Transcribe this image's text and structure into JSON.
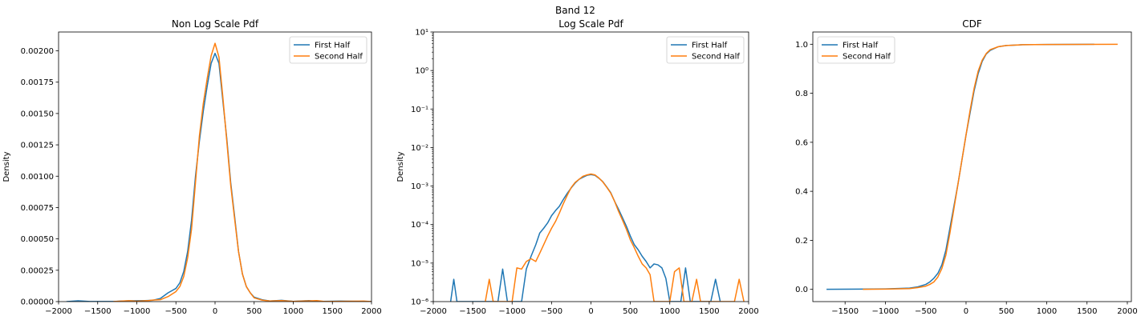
{
  "figure": {
    "suptitle": "Band 12"
  },
  "colors": {
    "first": "#1f77b4",
    "second": "#ff7f0e"
  },
  "chart_data": [
    {
      "type": "line",
      "title": "Non Log Scale Pdf",
      "xlabel": "",
      "ylabel": "Density",
      "xlim": [
        -2000,
        2000
      ],
      "ylim": [
        0,
        0.00215
      ],
      "xticks": [
        -2000,
        -1500,
        -1000,
        -500,
        0,
        500,
        1000,
        1500,
        2000
      ],
      "yticks": [
        0,
        0.00025,
        0.0005,
        0.00075,
        0.001,
        0.00125,
        0.0015,
        0.00175,
        0.002
      ],
      "ytick_labels": [
        "0.00000",
        "0.00025",
        "0.00050",
        "0.00075",
        "0.00100",
        "0.00125",
        "0.00150",
        "0.00175",
        "0.00200"
      ],
      "legend": "top-right",
      "grid": false,
      "series": [
        {
          "name": "First Half",
          "points": [
            [
              -1900,
              0
            ],
            [
              -1750,
              6e-06
            ],
            [
              -1600,
              1e-06
            ],
            [
              -1300,
              1e-06
            ],
            [
              -1100,
              6e-06
            ],
            [
              -900,
              8e-06
            ],
            [
              -800,
              1e-05
            ],
            [
              -700,
              2.5e-05
            ],
            [
              -600,
              7e-05
            ],
            [
              -500,
              0.000105
            ],
            [
              -450,
              0.00015
            ],
            [
              -400,
              0.00024
            ],
            [
              -350,
              0.0004
            ],
            [
              -300,
              0.00065
            ],
            [
              -250,
              0.001
            ],
            [
              -200,
              0.00128
            ],
            [
              -150,
              0.00152
            ],
            [
              -100,
              0.00172
            ],
            [
              -50,
              0.0019
            ],
            [
              0,
              0.00198
            ],
            [
              50,
              0.0019
            ],
            [
              100,
              0.0016
            ],
            [
              150,
              0.0013
            ],
            [
              200,
              0.00095
            ],
            [
              250,
              0.00068
            ],
            [
              300,
              0.0004
            ],
            [
              350,
              0.00022
            ],
            [
              400,
              0.00012
            ],
            [
              450,
              7e-05
            ],
            [
              500,
              3.5e-05
            ],
            [
              600,
              1.5e-05
            ],
            [
              700,
              5e-06
            ],
            [
              850,
              1e-05
            ],
            [
              1000,
              2e-06
            ],
            [
              1200,
              8e-06
            ],
            [
              1300,
              1e-06
            ],
            [
              1600,
              4e-06
            ],
            [
              2000,
              0
            ]
          ]
        },
        {
          "name": "Second Half",
          "points": [
            [
              -1300,
              0
            ],
            [
              -1200,
              4e-06
            ],
            [
              -1100,
              7e-06
            ],
            [
              -1000,
              3e-06
            ],
            [
              -850,
              8e-06
            ],
            [
              -800,
              1.2e-05
            ],
            [
              -700,
              1.5e-05
            ],
            [
              -600,
              4e-05
            ],
            [
              -550,
              6e-05
            ],
            [
              -500,
              8e-05
            ],
            [
              -450,
              0.00012
            ],
            [
              -400,
              0.0002
            ],
            [
              -350,
              0.00035
            ],
            [
              -300,
              0.00058
            ],
            [
              -250,
              0.00095
            ],
            [
              -200,
              0.00132
            ],
            [
              -150,
              0.00158
            ],
            [
              -100,
              0.00178
            ],
            [
              -50,
              0.00196
            ],
            [
              0,
              0.00206
            ],
            [
              50,
              0.00195
            ],
            [
              100,
              0.00163
            ],
            [
              150,
              0.00128
            ],
            [
              200,
              0.00093
            ],
            [
              250,
              0.00066
            ],
            [
              300,
              0.0004
            ],
            [
              350,
              0.00022
            ],
            [
              400,
              0.00012
            ],
            [
              450,
              7e-05
            ],
            [
              500,
              3e-05
            ],
            [
              600,
              1.2e-05
            ],
            [
              700,
              5e-06
            ],
            [
              850,
              8e-06
            ],
            [
              1000,
              2e-06
            ],
            [
              1300,
              8e-06
            ],
            [
              1400,
              1e-06
            ],
            [
              1900,
              4e-06
            ],
            [
              2000,
              0
            ]
          ]
        }
      ]
    },
    {
      "type": "line",
      "title": "Log Scale Pdf",
      "xlabel": "",
      "ylabel": "Density",
      "yscale": "log",
      "xlim": [
        -2000,
        2000
      ],
      "ylim": [
        1e-06,
        10
      ],
      "xticks": [
        -2000,
        -1500,
        -1000,
        -500,
        0,
        500,
        1000,
        1500,
        2000
      ],
      "yticks": [
        1e-06,
        1e-05,
        0.0001,
        0.001,
        0.01,
        0.1,
        1,
        10
      ],
      "ytick_labels": [
        "10⁻⁶",
        "10⁻⁵",
        "10⁻⁴",
        "10⁻³",
        "10⁻²",
        "10⁻¹",
        "10⁰",
        "10¹"
      ],
      "legend": "top-right",
      "grid": false,
      "series": [
        {
          "name": "First Half",
          "points": [
            [
              -1780,
              1e-06
            ],
            [
              -1740,
              3.8e-06
            ],
            [
              -1700,
              1e-06
            ],
            [
              -1180,
              1e-06
            ],
            [
              -1120,
              7e-06
            ],
            [
              -1060,
              1e-06
            ],
            [
              -880,
              1e-06
            ],
            [
              -820,
              7e-06
            ],
            [
              -760,
              1.5e-05
            ],
            [
              -700,
              3e-05
            ],
            [
              -650,
              6e-05
            ],
            [
              -600,
              8e-05
            ],
            [
              -550,
              0.00011
            ],
            [
              -500,
              0.00017
            ],
            [
              -450,
              0.00023
            ],
            [
              -400,
              0.0003
            ],
            [
              -350,
              0.00045
            ],
            [
              -300,
              0.00065
            ],
            [
              -250,
              0.0009
            ],
            [
              -200,
              0.0012
            ],
            [
              -150,
              0.0015
            ],
            [
              -100,
              0.0017
            ],
            [
              -50,
              0.0019
            ],
            [
              0,
              0.00198
            ],
            [
              50,
              0.0019
            ],
            [
              100,
              0.0016
            ],
            [
              150,
              0.0013
            ],
            [
              200,
              0.00095
            ],
            [
              250,
              0.00068
            ],
            [
              300,
              0.0004
            ],
            [
              350,
              0.00025
            ],
            [
              400,
              0.00015
            ],
            [
              450,
              9e-05
            ],
            [
              500,
              5e-05
            ],
            [
              550,
              3e-05
            ],
            [
              600,
              2.2e-05
            ],
            [
              650,
              1.5e-05
            ],
            [
              700,
              1.1e-05
            ],
            [
              750,
              7.5e-06
            ],
            [
              800,
              9.5e-06
            ],
            [
              850,
              9e-06
            ],
            [
              900,
              7.5e-06
            ],
            [
              950,
              4e-06
            ],
            [
              1000,
              1e-06
            ],
            [
              1140,
              1e-06
            ],
            [
              1200,
              7.5e-06
            ],
            [
              1260,
              1e-06
            ],
            [
              1520,
              1e-06
            ],
            [
              1580,
              3.8e-06
            ],
            [
              1640,
              1e-06
            ]
          ]
        },
        {
          "name": "Second Half",
          "points": [
            [
              -1340,
              1e-06
            ],
            [
              -1290,
              3.8e-06
            ],
            [
              -1240,
              1e-06
            ],
            [
              -1000,
              1e-06
            ],
            [
              -940,
              7.5e-06
            ],
            [
              -880,
              7e-06
            ],
            [
              -820,
              1.1e-05
            ],
            [
              -760,
              1.3e-05
            ],
            [
              -700,
              1.1e-05
            ],
            [
              -650,
              1.8e-05
            ],
            [
              -600,
              3e-05
            ],
            [
              -550,
              5e-05
            ],
            [
              -500,
              8e-05
            ],
            [
              -450,
              0.00012
            ],
            [
              -400,
              0.0002
            ],
            [
              -350,
              0.00035
            ],
            [
              -300,
              0.00058
            ],
            [
              -250,
              0.00092
            ],
            [
              -200,
              0.00125
            ],
            [
              -150,
              0.0015
            ],
            [
              -100,
              0.0018
            ],
            [
              -50,
              0.00195
            ],
            [
              0,
              0.00206
            ],
            [
              50,
              0.00195
            ],
            [
              100,
              0.00163
            ],
            [
              150,
              0.00128
            ],
            [
              200,
              0.00093
            ],
            [
              250,
              0.00066
            ],
            [
              300,
              0.0004
            ],
            [
              350,
              0.00022
            ],
            [
              400,
              0.00013
            ],
            [
              450,
              7.5e-05
            ],
            [
              500,
              4e-05
            ],
            [
              550,
              2.5e-05
            ],
            [
              600,
              1.5e-05
            ],
            [
              650,
              9.5e-06
            ],
            [
              700,
              7.5e-06
            ],
            [
              750,
              5e-06
            ],
            [
              800,
              1e-06
            ],
            [
              1000,
              1e-06
            ],
            [
              1060,
              6e-06
            ],
            [
              1120,
              7.5e-06
            ],
            [
              1180,
              1e-06
            ],
            [
              1280,
              1e-06
            ],
            [
              1340,
              3.8e-06
            ],
            [
              1390,
              1e-06
            ],
            [
              1820,
              1e-06
            ],
            [
              1880,
              3.8e-06
            ],
            [
              1940,
              1e-06
            ]
          ]
        }
      ]
    },
    {
      "type": "line",
      "title": "CDF",
      "xlabel": "",
      "ylabel": "",
      "xlim": [
        -1900,
        2050
      ],
      "ylim": [
        -0.05,
        1.05
      ],
      "xticks": [
        -1500,
        -1000,
        -500,
        0,
        500,
        1000,
        1500,
        2000
      ],
      "yticks": [
        0,
        0.2,
        0.4,
        0.6,
        0.8,
        1.0
      ],
      "ytick_labels": [
        "0.0",
        "0.2",
        "0.4",
        "0.6",
        "0.8",
        "1.0"
      ],
      "legend": "top-left",
      "grid": false,
      "series": [
        {
          "name": "First Half",
          "points": [
            [
              -1730,
              0
            ],
            [
              -1300,
              0.001
            ],
            [
              -1000,
              0.002
            ],
            [
              -700,
              0.005
            ],
            [
              -600,
              0.01
            ],
            [
              -500,
              0.02
            ],
            [
              -450,
              0.03
            ],
            [
              -400,
              0.045
            ],
            [
              -350,
              0.065
            ],
            [
              -300,
              0.1
            ],
            [
              -250,
              0.16
            ],
            [
              -200,
              0.25
            ],
            [
              -150,
              0.34
            ],
            [
              -100,
              0.43
            ],
            [
              -50,
              0.53
            ],
            [
              0,
              0.63
            ],
            [
              50,
              0.72
            ],
            [
              100,
              0.81
            ],
            [
              150,
              0.88
            ],
            [
              200,
              0.93
            ],
            [
              250,
              0.96
            ],
            [
              300,
              0.975
            ],
            [
              400,
              0.99
            ],
            [
              500,
              0.995
            ],
            [
              700,
              0.998
            ],
            [
              1000,
              0.999
            ],
            [
              1590,
              1.0
            ]
          ]
        },
        {
          "name": "Second Half",
          "points": [
            [
              -1280,
              0
            ],
            [
              -1000,
              0.001
            ],
            [
              -700,
              0.003
            ],
            [
              -600,
              0.007
            ],
            [
              -500,
              0.013
            ],
            [
              -450,
              0.02
            ],
            [
              -400,
              0.03
            ],
            [
              -350,
              0.05
            ],
            [
              -300,
              0.085
            ],
            [
              -250,
              0.14
            ],
            [
              -200,
              0.23
            ],
            [
              -150,
              0.33
            ],
            [
              -100,
              0.43
            ],
            [
              -50,
              0.53
            ],
            [
              0,
              0.63
            ],
            [
              50,
              0.73
            ],
            [
              100,
              0.82
            ],
            [
              150,
              0.89
            ],
            [
              200,
              0.935
            ],
            [
              250,
              0.962
            ],
            [
              300,
              0.978
            ],
            [
              400,
              0.99
            ],
            [
              500,
              0.995
            ],
            [
              700,
              0.998
            ],
            [
              1000,
              0.999
            ],
            [
              1880,
              1.0
            ]
          ]
        }
      ]
    }
  ]
}
